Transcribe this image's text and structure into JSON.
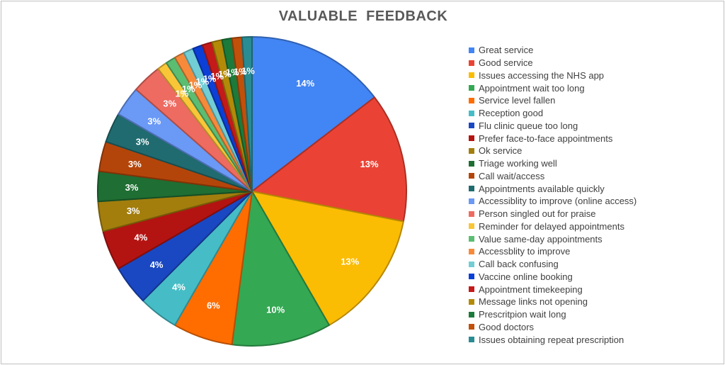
{
  "chart_data": {
    "type": "pie",
    "title": "VALUABLE  FEEDBACK",
    "legend_position": "right",
    "slices": [
      {
        "name": "Great service",
        "value": 14,
        "label": "14%",
        "color": "#4285F4"
      },
      {
        "name": "Good service",
        "value": 13,
        "label": "13%",
        "color": "#EA4335"
      },
      {
        "name": "Issues accessing the NHS app",
        "value": 13,
        "label": "13%",
        "color": "#FBBC04"
      },
      {
        "name": "Appointment wait too long",
        "value": 10,
        "label": "10%",
        "color": "#34A853"
      },
      {
        "name": "Service level fallen",
        "value": 6,
        "label": "6%",
        "color": "#FF6D01"
      },
      {
        "name": "Reception good",
        "value": 4,
        "label": "4%",
        "color": "#46BDC6"
      },
      {
        "name": "Flu clinic queue too long",
        "value": 4,
        "label": "4%",
        "color": "#1A48C2"
      },
      {
        "name": "Prefer face-to-face appointments",
        "value": 4,
        "label": "4%",
        "color": "#B31412"
      },
      {
        "name": "Ok service",
        "value": 3,
        "label": "3%",
        "color": "#A37E0D"
      },
      {
        "name": "Triage working well",
        "value": 3,
        "label": "3%",
        "color": "#1F6E33"
      },
      {
        "name": "Call wait/access",
        "value": 3,
        "label": "3%",
        "color": "#B4450A"
      },
      {
        "name": "Appointments available quickly",
        "value": 3,
        "label": "3%",
        "color": "#206B6F"
      },
      {
        "name": "Accessiblity to improve (online access)",
        "value": 3,
        "label": "3%",
        "color": "#6A99F6"
      },
      {
        "name": "Person singled out for praise",
        "value": 3,
        "label": "3%",
        "color": "#EE6B61"
      },
      {
        "name": "Reminder for delayed appointments",
        "value": 1,
        "label": "1%",
        "color": "#F9C638"
      },
      {
        "name": "Value same-day appointments",
        "value": 1,
        "label": "1%",
        "color": "#5BBD72"
      },
      {
        "name": "Accessblity to improve",
        "value": 1,
        "label": "1%",
        "color": "#F78A3A"
      },
      {
        "name": "Call back confusing",
        "value": 1,
        "label": "1%",
        "color": "#72CDD4"
      },
      {
        "name": "Vaccine online booking",
        "value": 1,
        "label": "1%",
        "color": "#0B3FD6"
      },
      {
        "name": "Appointment timekeeping",
        "value": 1,
        "label": "1%",
        "color": "#C41A1A"
      },
      {
        "name": "Message links not opening",
        "value": 1,
        "label": "1%",
        "color": "#B38A08"
      },
      {
        "name": "Prescritpion wait long",
        "value": 1,
        "label": "1%",
        "color": "#1C7A3A"
      },
      {
        "name": "Good doctors",
        "value": 1,
        "label": "1%",
        "color": "#C1500B"
      },
      {
        "name": "Issues obtaining repeat prescription",
        "value": 1,
        "label": "1%",
        "color": "#2A8C93"
      }
    ]
  }
}
